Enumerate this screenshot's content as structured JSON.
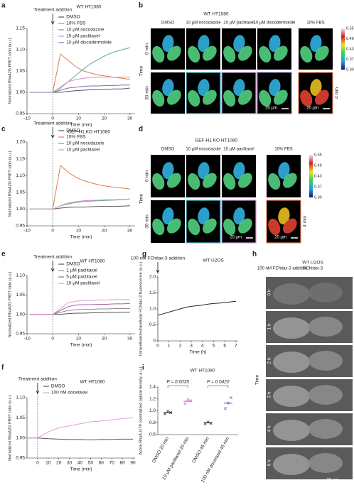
{
  "panel_labels": [
    "a",
    "b",
    "c",
    "d",
    "e",
    "f",
    "g",
    "h",
    "i"
  ],
  "chart_data": [
    {
      "type": "line",
      "title": "WT HT1080",
      "x_label": "Time (min)",
      "y_label": "Normalized RhoA2G FRET ratio (a.u.)",
      "annotation": {
        "text": "Treatment addition",
        "x": 0
      },
      "x": [
        -9,
        -6,
        -3,
        0,
        3,
        6,
        9,
        12,
        15,
        18,
        21,
        24,
        27,
        30
      ],
      "xlim": [
        -10,
        32
      ],
      "xticks": [
        -10,
        0,
        10,
        20,
        30
      ],
      "ylim": [
        0.95,
        1.15
      ],
      "yticks": [
        {
          "value": 0.95,
          "label": "0.95"
        },
        {
          "value": 1.0,
          "label": "1.00"
        },
        {
          "value": 1.05,
          "label": "1.05"
        },
        {
          "value": 1.1,
          "label": "1.10"
        },
        {
          "value": 1.15,
          "label": "1.15"
        }
      ],
      "series": [
        {
          "name": "DMSO",
          "color": "#555555",
          "values": [
            1.0,
            1.0,
            1.0,
            1.0,
            1.0,
            1.002,
            1.004,
            1.005,
            1.006,
            1.006,
            1.007,
            1.008,
            1.008,
            1.01
          ]
        },
        {
          "name": "10% FBS",
          "color": "#e07b4f",
          "values": [
            1.0,
            1.0,
            1.0,
            1.0,
            1.09,
            1.075,
            1.06,
            1.05,
            1.045,
            1.04,
            1.038,
            1.035,
            1.033,
            1.03
          ]
        },
        {
          "name": "10 µM nocodazole",
          "color": "#4fae8a",
          "values": [
            1.0,
            1.0,
            1.0,
            1.0,
            1.01,
            1.025,
            1.04,
            1.055,
            1.068,
            1.078,
            1.088,
            1.095,
            1.1,
            1.105
          ]
        },
        {
          "name": "10 µM paclitaxel",
          "color": "#d98ad0",
          "values": [
            1.0,
            1.0,
            1.0,
            1.0,
            1.012,
            1.025,
            1.03,
            1.033,
            1.035,
            1.035,
            1.036,
            1.035,
            1.036,
            1.035
          ]
        },
        {
          "name": "10 µM discodermolide",
          "color": "#7b6fb8",
          "values": [
            1.0,
            1.0,
            1.0,
            1.0,
            1.005,
            1.01,
            1.012,
            1.014,
            1.015,
            1.015,
            1.016,
            1.016,
            1.017,
            1.017
          ]
        }
      ]
    },
    {
      "type": "line",
      "title": "GEF-H1 KO HT1080",
      "x_label": "Time (min)",
      "y_label": "Normalized RhoA2G FRET ratio (a.u.)",
      "annotation": {
        "text": "Treatment addition",
        "x": 0
      },
      "x": [
        -9,
        -6,
        -3,
        0,
        3,
        6,
        9,
        12,
        15,
        18,
        21,
        24,
        27,
        30
      ],
      "xlim": [
        -10,
        32
      ],
      "xticks": [
        -10,
        0,
        10,
        20,
        30
      ],
      "ylim": [
        0.95,
        1.2
      ],
      "yticks": [
        {
          "value": 0.95,
          "label": "0.95"
        },
        {
          "value": 1.0,
          "label": "1.00"
        },
        {
          "value": 1.05,
          "label": "1.05"
        },
        {
          "value": 1.1,
          "label": "1.10"
        },
        {
          "value": 1.15,
          "label": "1.15"
        },
        {
          "value": 1.2,
          "label": "1.20"
        }
      ],
      "series": [
        {
          "name": "DMSO",
          "color": "#555555",
          "values": [
            1.0,
            1.0,
            1.0,
            1.0,
            1.003,
            1.005,
            1.006,
            1.006,
            1.007,
            1.008,
            1.008,
            1.008,
            1.009,
            1.01
          ]
        },
        {
          "name": "10% FBS",
          "color": "#e07b4f",
          "values": [
            1.0,
            1.0,
            1.0,
            1.0,
            1.13,
            1.11,
            1.095,
            1.085,
            1.078,
            1.072,
            1.068,
            1.065,
            1.063,
            1.06
          ]
        },
        {
          "name": "10 µM nocodazole",
          "color": "#4fae8a",
          "values": [
            1.0,
            1.0,
            1.0,
            1.0,
            1.01,
            1.015,
            1.02,
            1.022,
            1.024,
            1.025,
            1.026,
            1.027,
            1.028,
            1.03
          ]
        },
        {
          "name": "10 µM paclitaxel",
          "color": "#d98ad0",
          "values": [
            1.0,
            1.0,
            1.0,
            1.0,
            1.01,
            1.018,
            1.022,
            1.025,
            1.026,
            1.027,
            1.028,
            1.028,
            1.029,
            1.03
          ]
        }
      ]
    },
    {
      "type": "line",
      "title": "WT HT1080",
      "x_label": "Time (min)",
      "y_label": "Normalized RhoA2G FRET ratio (a.u.)",
      "annotation": {
        "text": "Treatment addition",
        "x": 0
      },
      "x": [
        -9,
        -6,
        -3,
        0,
        3,
        6,
        9,
        12,
        15,
        18,
        21,
        24,
        27,
        30
      ],
      "xlim": [
        -10,
        32
      ],
      "xticks": [
        -10,
        0,
        10,
        20,
        30
      ],
      "ylim": [
        0.95,
        1.1
      ],
      "yticks": [
        {
          "value": 0.95,
          "label": "0.95"
        },
        {
          "value": 1.0,
          "label": "1.00"
        },
        {
          "value": 1.05,
          "label": "1.05"
        },
        {
          "value": 1.1,
          "label": "1.10"
        }
      ],
      "series": [
        {
          "name": "DMSO",
          "color": "#555555",
          "values": [
            1.0,
            1.0,
            1.0,
            1.0,
            1.0,
            1.002,
            1.003,
            1.003,
            1.004,
            1.004,
            1.005,
            1.005,
            1.005,
            1.006
          ]
        },
        {
          "name": "1 µM paclitaxel",
          "color": "#8c8c8c",
          "values": [
            1.0,
            1.0,
            1.0,
            1.0,
            1.005,
            1.01,
            1.012,
            1.013,
            1.013,
            1.014,
            1.014,
            1.015,
            1.015,
            1.015
          ]
        },
        {
          "name": "5 µM paclitaxel",
          "color": "#a8609e",
          "values": [
            1.0,
            1.0,
            1.0,
            1.0,
            1.01,
            1.02,
            1.024,
            1.025,
            1.025,
            1.026,
            1.026,
            1.027,
            1.027,
            1.028
          ]
        },
        {
          "name": "10 µM paclitaxel",
          "color": "#e09ad8",
          "values": [
            1.0,
            1.0,
            1.0,
            1.0,
            1.015,
            1.03,
            1.034,
            1.036,
            1.036,
            1.037,
            1.037,
            1.038,
            1.038,
            1.038
          ]
        }
      ]
    },
    {
      "type": "line",
      "title": "WT HT1080",
      "x_label": "Time (min)",
      "y_label": "Normalized RhoA2G FRET ratio (a.u.)",
      "annotation": {
        "text": "Treatment addition",
        "x": 0
      },
      "x": [
        -10,
        0,
        10,
        20,
        30,
        40,
        50,
        60,
        70,
        80,
        90
      ],
      "xlim": [
        -10,
        92
      ],
      "xticks": [
        0,
        10,
        20,
        30,
        40,
        50,
        60,
        70,
        80,
        90
      ],
      "ylim": [
        0.95,
        1.1
      ],
      "yticks": [
        {
          "value": 0.95,
          "label": "0.95"
        },
        {
          "value": 1.0,
          "label": "1.00"
        },
        {
          "value": 1.05,
          "label": "1.05"
        },
        {
          "value": 1.1,
          "label": "1.10"
        }
      ],
      "series": [
        {
          "name": "DMSO",
          "color": "#555555",
          "values": [
            1.0,
            1.0,
            0.998,
            0.997,
            0.996,
            0.996,
            0.995,
            0.996,
            0.996,
            0.997,
            0.997
          ]
        },
        {
          "name": "100 nM docetaxel",
          "color": "#e0a0e0",
          "values": [
            1.0,
            1.0,
            1.015,
            1.025,
            1.03,
            1.035,
            1.04,
            1.042,
            1.045,
            1.048,
            1.05
          ]
        }
      ]
    },
    {
      "type": "line",
      "title": "WT U2OS",
      "x_label": "Time (h)",
      "y_label": "Intracellular/extracellular FChitax-3 fluorescence (a.u.)",
      "annotation": {
        "text": "100 nM FChitax-3 addition",
        "x": 0
      },
      "x": [
        0,
        0.5,
        1,
        1.5,
        2,
        2.5,
        3,
        3.5,
        4,
        4.5,
        5,
        5.5,
        6,
        6.5,
        7
      ],
      "xlim": [
        0,
        7.2
      ],
      "xticks": [
        0,
        1,
        2,
        3,
        4,
        5,
        6,
        7
      ],
      "ylim": [
        0,
        2
      ],
      "yticks": [
        0,
        0.5,
        {
          "value": 1,
          "label": "1.0"
        },
        1.5,
        {
          "value": 2,
          "label": "2.0"
        }
      ],
      "series": [
        {
          "name": "FChitax-3",
          "color": "#222222",
          "values": [
            0.8,
            0.85,
            0.9,
            0.95,
            1.0,
            1.05,
            1.08,
            1.1,
            1.12,
            1.15,
            1.17,
            1.18,
            1.2,
            1.22,
            1.24
          ]
        }
      ]
    },
    {
      "type": "dotplot",
      "title": "WT HT1080",
      "y_label": "Active RhoA-GTP (normalized optical density, a.u.)",
      "categories": [
        "DMSO 20 min",
        "10 µM paclitaxel 20 min",
        "DMSO 45 min",
        "100 nM docetaxel 45 min"
      ],
      "colors": [
        "#333333",
        "#d070c8",
        "#333333",
        "#8a5fb8"
      ],
      "values": [
        0.97,
        1.16,
        0.8,
        1.13
      ],
      "points": [
        [
          0.95,
          0.99,
          0.97
        ],
        [
          1.12,
          1.19,
          1.17
        ],
        [
          0.78,
          0.81,
          0.79
        ],
        [
          1.04,
          1.13,
          1.22
        ]
      ],
      "ylim": [
        0.6,
        1.4
      ],
      "yticks": [
        {
          "value": 0.6,
          "label": "0.6"
        },
        {
          "value": 0.8,
          "label": "0.8"
        },
        {
          "value": 1.0,
          "label": "1.0"
        },
        {
          "value": 1.2,
          "label": "1.2"
        },
        {
          "value": 1.4,
          "label": "1.4"
        }
      ],
      "annotations": [
        {
          "text": "P = 0.0035"
        },
        {
          "text": "P = 0.0420"
        }
      ]
    }
  ],
  "images": {
    "b": {
      "title": "WT HT1080",
      "columns": [
        "DMSO",
        "10 µM nocodazole",
        "10 µM paclitaxel",
        "10 µM discodermolide",
        "10% FBS"
      ],
      "rows": [
        "0 min",
        "30 min"
      ],
      "extra_row": "4 min",
      "axis": "Time",
      "colorbar": [
        "0.55",
        "0.49",
        "0.43",
        "0.37",
        "0.30"
      ],
      "scale": "20 µm"
    },
    "d": {
      "title": "GEF-H1 KO HT1080",
      "columns": [
        "DMSO",
        "10 µM nocodazole",
        "10 µM paclitaxel",
        "10% FBS"
      ],
      "rows": [
        "0 min",
        "30 min"
      ],
      "extra_row": "4 min",
      "axis": "Time",
      "colorbar": [
        "0.55",
        "0.49",
        "0.43",
        "0.37",
        "0.30"
      ],
      "scale": "20 µm"
    },
    "h": {
      "title": "WT U2OS",
      "subtitle": "FChitax-3",
      "note": "100 nM FChitax-3 addition",
      "rows": [
        "0 h",
        "1 h",
        "2 h",
        "3 h",
        "4 h",
        "6 h"
      ],
      "axis": "Time",
      "scale": "20 µm"
    }
  }
}
